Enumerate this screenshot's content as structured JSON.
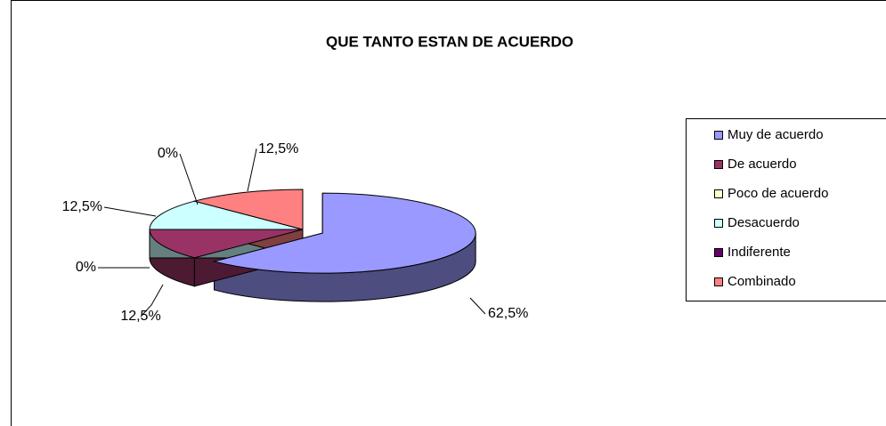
{
  "chart_data": {
    "type": "pie",
    "title": "QUE TANTO ESTAN DE ACUERDO",
    "categories": [
      "Muy de acuerdo",
      "De acuerdo",
      "Poco de acuerdo",
      "Desacuerdo",
      "Indiferente",
      "Combinado"
    ],
    "values": [
      62.5,
      12.5,
      0,
      12.5,
      0,
      12.5
    ],
    "value_labels": [
      "62,5%",
      "12,5%",
      "0%",
      "12,5%",
      "0%",
      "12,5%"
    ],
    "colors": [
      "#9999ff",
      "#993366",
      "#ffffcc",
      "#ccffff",
      "#660066",
      "#ff8080"
    ],
    "legend": "right"
  }
}
